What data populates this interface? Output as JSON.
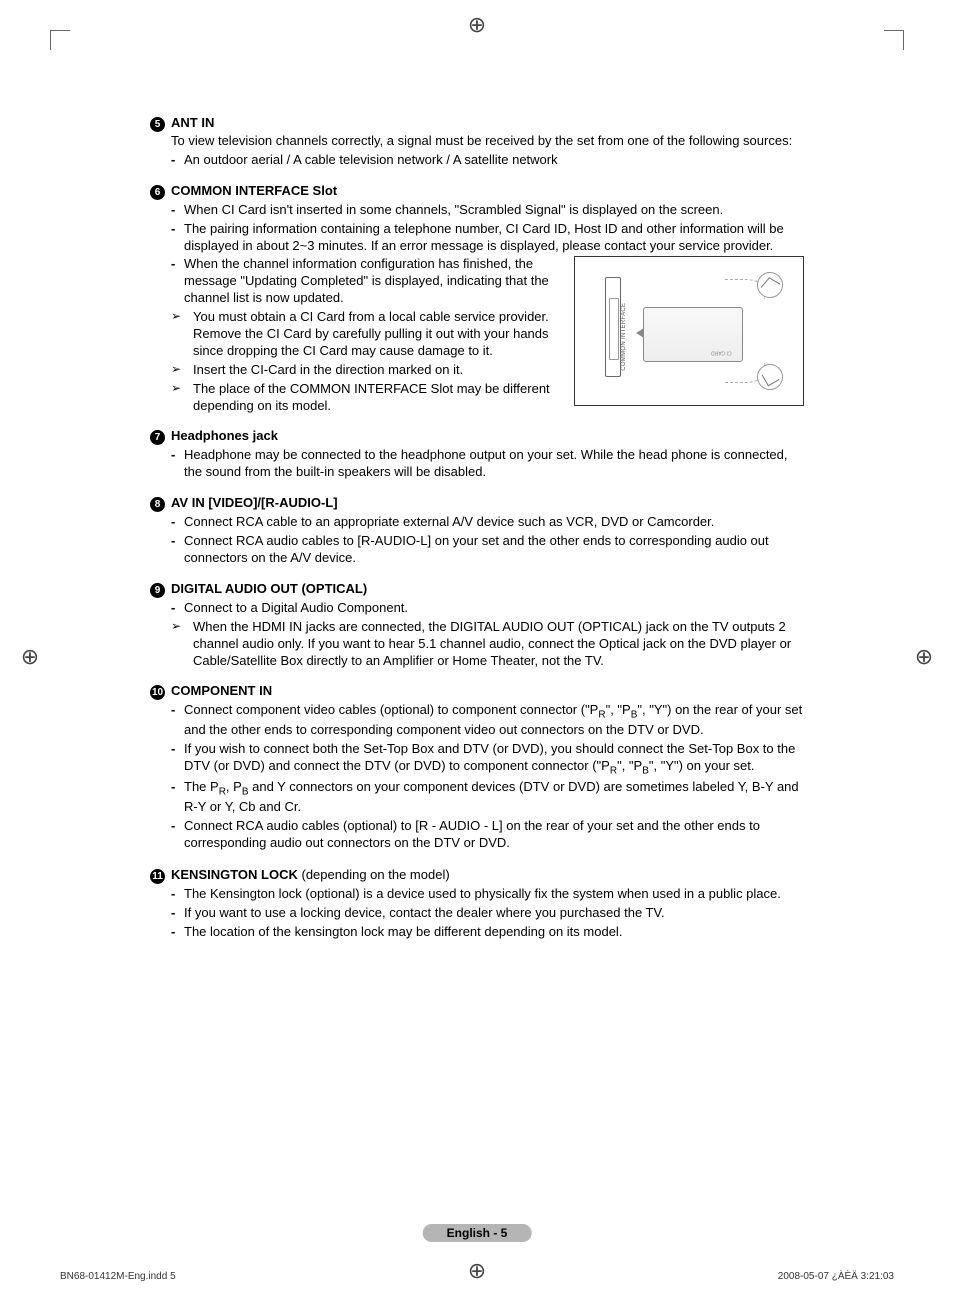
{
  "sections": {
    "s5": {
      "num": "5",
      "title": "ANT IN",
      "intro": "To view television channels correctly, a signal must be received by the set from one of the following sources:",
      "items": [
        "An outdoor aerial / A cable television network / A satellite network"
      ]
    },
    "s6": {
      "num": "6",
      "title": "COMMON INTERFACE Slot",
      "items": [
        "When CI Card isn't inserted in some channels, \"Scrambled Signal\" is displayed on the screen.",
        "The pairing information containing a telephone number, CI Card ID, Host ID and other information will be displayed in about 2~3 minutes. If an error message is displayed, please contact your service provider.",
        "When the channel information configuration has finished, the message \"Updating Completed\" is displayed, indicating that the channel list is now updated."
      ],
      "arrows": [
        "You must obtain a CI Card from a local cable service provider. Remove the CI Card by carefully pulling it out with your hands since dropping the CI Card may cause damage to it.",
        "Insert the CI-Card in the direction marked on it.",
        "The place of the COMMON INTERFACE Slot may be different depending on its model."
      ],
      "diagram": {
        "slot_label": "COMMON INTERFACE",
        "card_label": "CI CARD"
      }
    },
    "s7": {
      "num": "7",
      "title": "Headphones jack",
      "items": [
        "Headphone may be connected to the headphone output on your set. While the head phone is connected, the sound from the built-in speakers will be disabled."
      ]
    },
    "s8": {
      "num": "8",
      "title": "AV IN [VIDEO]/[R-AUDIO-L]",
      "items": [
        "Connect RCA cable to an appropriate external A/V device such as VCR, DVD or Camcorder.",
        "Connect RCA audio cables to [R-AUDIO-L] on your set and the other ends to corresponding audio out connectors on the A/V device."
      ]
    },
    "s9": {
      "num": "9",
      "title": "DIGITAL AUDIO OUT (OPTICAL)",
      "items": [
        "Connect to a Digital Audio Component."
      ],
      "arrows": [
        "When the HDMI IN jacks are connected, the DIGITAL AUDIO OUT (OPTICAL) jack on the TV outputs 2 channel audio only. If you want to hear 5.1 channel audio, connect the Optical jack on the DVD player or Cable/Satellite Box directly to an Amplifier or Home Theater, not the TV."
      ]
    },
    "s10": {
      "num": "10",
      "title": "COMPONENT IN",
      "items_html": [
        "Connect component video cables (optional) to component connector (\"P<span class='sub-small'>R</span>\", \"P<span class='sub-small'>B</span>\", \"Y\") on the rear of your set and the other ends to corresponding component video out connectors on the DTV or DVD.",
        "If you wish to connect both the Set-Top Box and DTV (or DVD), you should connect the Set-Top Box to the DTV (or DVD) and connect the DTV (or DVD) to component connector (\"P<span class='sub-small'>R</span>\", \"P<span class='sub-small'>B</span>\", \"Y\") on your set.",
        "The P<span class='sub-small'>R</span>, P<span class='sub-small'>B</span> and Y connectors on your component devices (DTV or DVD) are sometimes labeled Y, B-Y and R-Y or Y, Cb and Cr.",
        "Connect RCA audio cables (optional) to [R - AUDIO - L] on the rear of your set and the other ends to corresponding audio out connectors on the DTV or DVD."
      ]
    },
    "s11": {
      "num": "11",
      "title": "KENSINGTON LOCK",
      "title_suffix": " (depending on the model)",
      "items": [
        "The Kensington lock (optional) is a device used to physically fix the system when used in a public place.",
        "If you want to use a locking device, contact the dealer where you purchased the TV.",
        "The location of the kensington lock may be different depending on its model."
      ]
    }
  },
  "page_label": "English - 5",
  "footer": {
    "left": "BN68-01412M-Eng.indd   5",
    "right": "2008-05-07   ¿ÀÈÄ 3:21:03"
  },
  "colors": {
    "text": "#000000",
    "pill_bg": "#b5b5b5",
    "border": "#666666"
  }
}
